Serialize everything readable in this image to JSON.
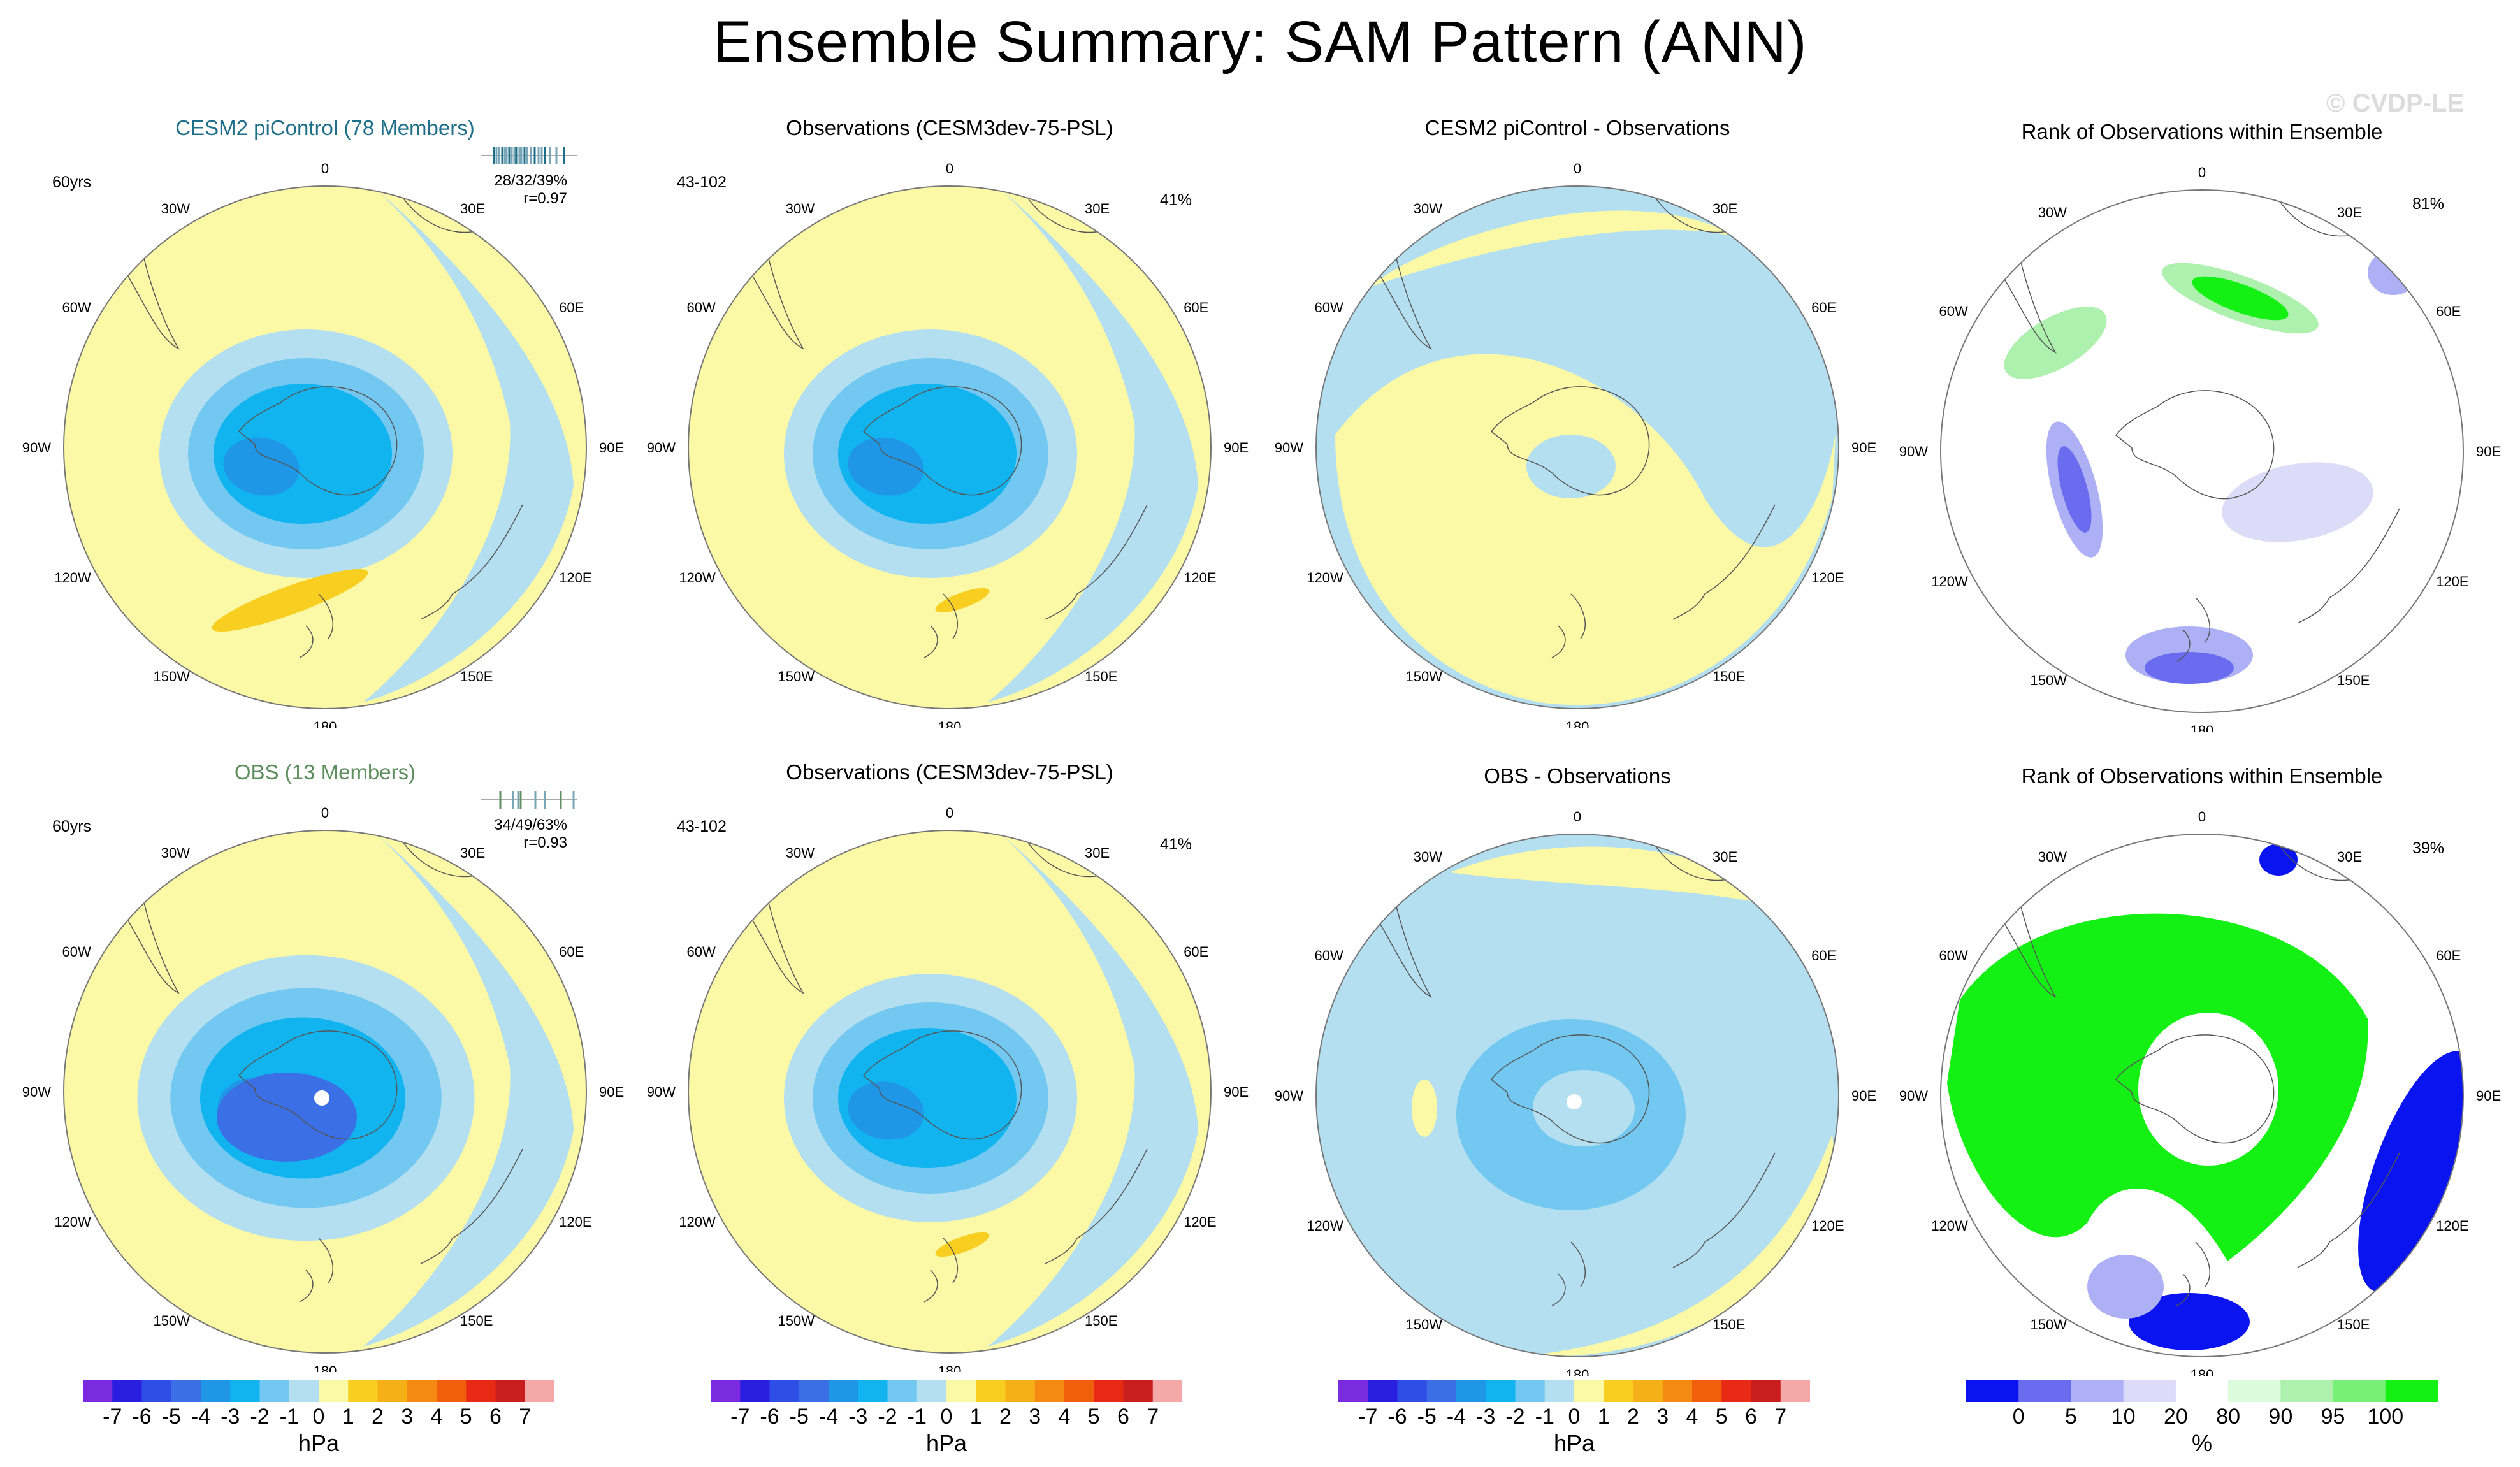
{
  "title": "Ensemble Summary: SAM Pattern (ANN)",
  "watermark": "© CVDP-LE",
  "panels": [
    {
      "id": "p11",
      "title": "CESM2 piControl (78 Members)",
      "title_color": "teal",
      "years": "60yrs",
      "pct": "",
      "stats1": "28/32/39%",
      "stats2": "r=0.97",
      "strip": "teal"
    },
    {
      "id": "p12",
      "title": "Observations (CESM3dev-75-PSL)",
      "years": "43-102",
      "pct": "41%",
      "stats1": "",
      "stats2": ""
    },
    {
      "id": "p13",
      "title": "CESM2 piControl - Observations",
      "years": "",
      "pct": "",
      "stats1": "",
      "stats2": ""
    },
    {
      "id": "p14",
      "title": "Rank of Observations within Ensemble",
      "years": "",
      "pct": "81%",
      "stats1": "",
      "stats2": ""
    },
    {
      "id": "p21",
      "title": "OBS (13 Members)",
      "title_color": "green",
      "years": "60yrs",
      "pct": "",
      "stats1": "34/49/63%",
      "stats2": "r=0.93",
      "strip": "green"
    },
    {
      "id": "p22",
      "title": "Observations (CESM3dev-75-PSL)",
      "years": "43-102",
      "pct": "41%",
      "stats1": "",
      "stats2": ""
    },
    {
      "id": "p23",
      "title": "OBS - Observations",
      "years": "",
      "pct": "",
      "stats1": "",
      "stats2": ""
    },
    {
      "id": "p24",
      "title": "Rank of Observations within Ensemble",
      "years": "",
      "pct": "39%",
      "stats1": "",
      "stats2": ""
    }
  ],
  "longitude_labels": [
    "0",
    "30E",
    "60E",
    "90E",
    "120E",
    "150E",
    "180",
    "150W",
    "120W",
    "90W",
    "60W",
    "30W"
  ],
  "colorbars": {
    "hpa": {
      "ticks": [
        "-7",
        "-6",
        "-5",
        "-4",
        "-3",
        "-2",
        "-1",
        "0",
        "1",
        "2",
        "3",
        "4",
        "5",
        "6",
        "7"
      ],
      "unit": "hPa",
      "colors": [
        "#7a2be0",
        "#2a1fe0",
        "#2e4ee6",
        "#3a6fe6",
        "#1f96e6",
        "#12b4f0",
        "#72c8f0",
        "#b4dff0",
        "#fbf8a6",
        "#f8cf20",
        "#f5b018",
        "#f58a12",
        "#f0600c",
        "#e82a14",
        "#c81e1e",
        "#f5a8a8"
      ]
    },
    "rank": {
      "ticks": [
        "0",
        "5",
        "10",
        "20",
        "80",
        "90",
        "95",
        "100"
      ],
      "unit": "%",
      "colors": [
        "#0a14f0",
        "#6a6cf0",
        "#aeb0f5",
        "#dcdcf8",
        "#ffffff",
        "#dcfadc",
        "#aef0ae",
        "#78f078",
        "#14f014"
      ]
    }
  },
  "chart_data": {
    "type": "polar-contour-map",
    "projection": "South polar stereographic",
    "variable": "SAM pattern (sea level pressure)",
    "units": "hPa",
    "contour_levels_hpa": [
      -7,
      -6,
      -5,
      -4,
      -3,
      -2,
      -1,
      0,
      1,
      2,
      3,
      4,
      5,
      6,
      7
    ],
    "rank_levels_pct": [
      0,
      5,
      10,
      20,
      80,
      90,
      95,
      100
    ],
    "panels": [
      {
        "name": "CESM2 piControl (78 Members)",
        "min_hpa": -5,
        "max_hpa": 2,
        "years": "60yrs",
        "pattern_correlation": 0.97,
        "percentiles": "28/32/39%"
      },
      {
        "name": "Observations (CESM3dev-75-PSL)",
        "min_hpa": -5,
        "max_hpa": 2,
        "years": "43-102",
        "explained_variance": "41%"
      },
      {
        "name": "CESM2 piControl - Observations",
        "min_hpa": -1,
        "max_hpa": 1
      },
      {
        "name": "Rank of Observations within Ensemble",
        "pct": "81%"
      },
      {
        "name": "OBS (13 Members)",
        "min_hpa": -6,
        "max_hpa": 2,
        "years": "60yrs",
        "pattern_correlation": 0.93,
        "percentiles": "34/49/63%"
      },
      {
        "name": "Observations (CESM3dev-75-PSL)",
        "min_hpa": -5,
        "max_hpa": 2,
        "years": "43-102",
        "explained_variance": "41%"
      },
      {
        "name": "OBS - Observations",
        "min_hpa": -2,
        "max_hpa": 1
      },
      {
        "name": "Rank of Observations within Ensemble",
        "pct": "39%"
      }
    ]
  }
}
